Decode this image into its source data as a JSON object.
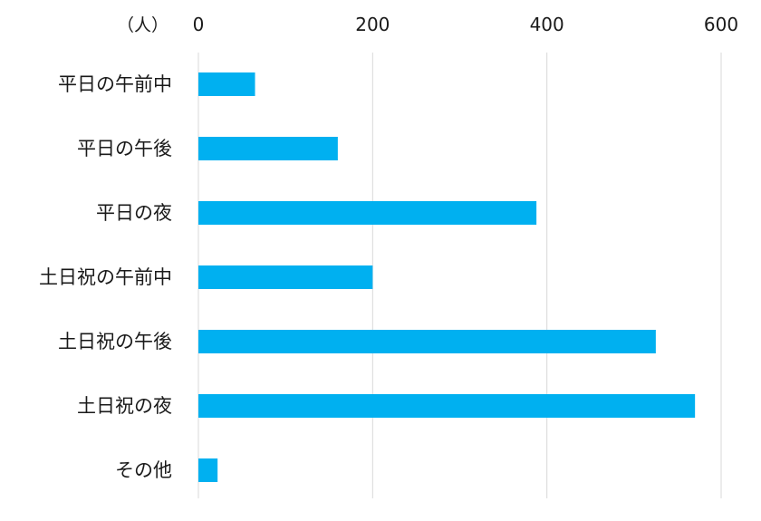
{
  "chart_data": {
    "type": "bar",
    "orientation": "horizontal",
    "title": "",
    "xlabel": "",
    "ylabel": "",
    "unit_label": "（人）",
    "categories": [
      "平日の午前中",
      "平日の午後",
      "平日の夜",
      "土日祝の午前中",
      "土日祝の午後",
      "土日祝の夜",
      "その他"
    ],
    "values": [
      65,
      160,
      388,
      200,
      525,
      570,
      22
    ],
    "xlim": [
      0,
      600
    ],
    "x_ticks": [
      0,
      200,
      400,
      600
    ],
    "x_axis_position": "top",
    "grid": true,
    "legend": "none",
    "bar_color": "#00B0F0",
    "grid_color": "#D9D9D9"
  }
}
